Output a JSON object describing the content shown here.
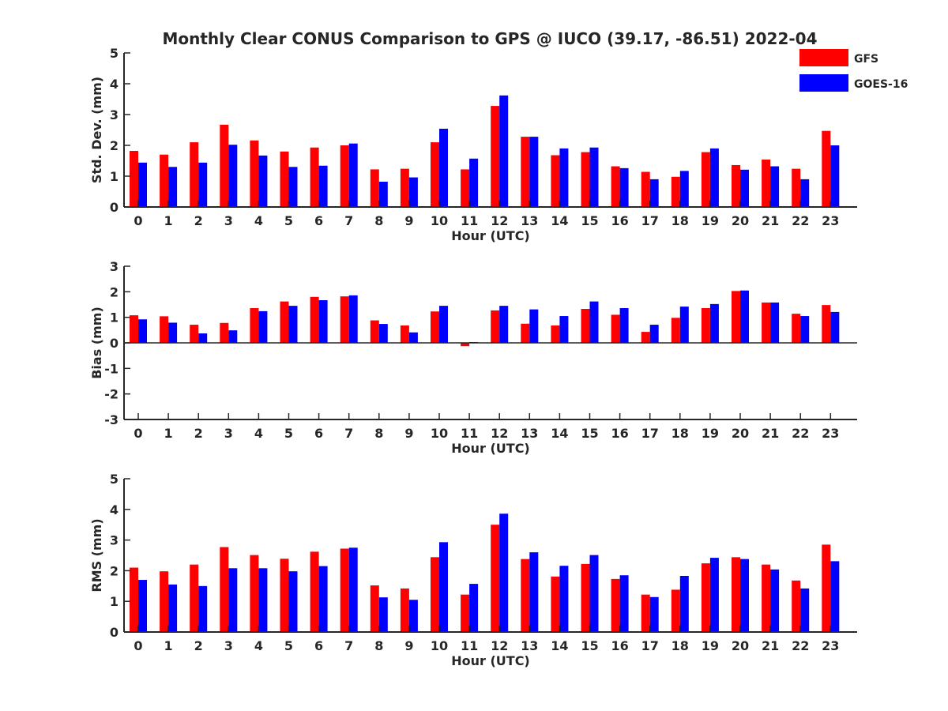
{
  "figure": {
    "title": "Monthly Clear CONUS Comparison to GPS @ IUCO (39.17, -86.51) 2022-04"
  },
  "legend": {
    "placement": "top-right",
    "entries": [
      {
        "name": "GFS",
        "color": "#ff0000"
      },
      {
        "name": "GOES-16",
        "color": "#0000ff"
      }
    ]
  },
  "chart_data": [
    {
      "type": "bar",
      "id": "stddev",
      "xlabel": "Hour (UTC)",
      "ylabel": "Std. Dev. (mm)",
      "ylim": [
        0,
        5
      ],
      "yticks": [
        0,
        1,
        2,
        3,
        4,
        5
      ],
      "categories": [
        "0",
        "1",
        "2",
        "3",
        "4",
        "5",
        "6",
        "7",
        "8",
        "9",
        "10",
        "11",
        "12",
        "13",
        "14",
        "15",
        "16",
        "17",
        "18",
        "19",
        "20",
        "21",
        "22",
        "23"
      ],
      "series": [
        {
          "name": "GFS",
          "color": "#ff0000",
          "values": [
            1.82,
            1.7,
            2.1,
            2.67,
            2.16,
            1.8,
            1.93,
            2.0,
            1.22,
            1.24,
            2.1,
            1.22,
            3.28,
            2.28,
            1.68,
            1.78,
            1.32,
            1.14,
            0.98,
            1.78,
            1.36,
            1.54,
            1.24,
            2.47
          ]
        },
        {
          "name": "GOES-16",
          "color": "#0000ff",
          "values": [
            1.44,
            1.3,
            1.44,
            2.02,
            1.67,
            1.3,
            1.34,
            2.06,
            0.82,
            0.96,
            2.54,
            1.57,
            3.62,
            2.28,
            1.9,
            1.93,
            1.26,
            0.9,
            1.17,
            1.9,
            1.21,
            1.32,
            0.9,
            2.0
          ]
        }
      ]
    },
    {
      "type": "bar",
      "id": "bias",
      "xlabel": "Hour (UTC)",
      "ylabel": "Bias (mm)",
      "ylim": [
        -3,
        3
      ],
      "yticks": [
        -3,
        -2,
        -1,
        0,
        1,
        2,
        3
      ],
      "categories": [
        "0",
        "1",
        "2",
        "3",
        "4",
        "5",
        "6",
        "7",
        "8",
        "9",
        "10",
        "11",
        "12",
        "13",
        "14",
        "15",
        "16",
        "17",
        "18",
        "19",
        "20",
        "21",
        "22",
        "23"
      ],
      "series": [
        {
          "name": "GFS",
          "color": "#ff0000",
          "values": [
            1.08,
            1.04,
            0.71,
            0.78,
            1.36,
            1.62,
            1.8,
            1.82,
            0.88,
            0.68,
            1.23,
            -0.13,
            1.27,
            0.75,
            0.68,
            1.33,
            1.1,
            0.43,
            0.98,
            1.36,
            2.03,
            1.58,
            1.14,
            1.48
          ]
        },
        {
          "name": "GOES-16",
          "color": "#0000ff",
          "values": [
            0.92,
            0.79,
            0.37,
            0.49,
            1.24,
            1.45,
            1.67,
            1.86,
            0.74,
            0.41,
            1.45,
            0.03,
            1.45,
            1.31,
            1.05,
            1.62,
            1.36,
            0.71,
            1.42,
            1.52,
            2.05,
            1.58,
            1.05,
            1.21
          ]
        }
      ]
    },
    {
      "type": "bar",
      "id": "rms",
      "xlabel": "Hour (UTC)",
      "ylabel": "RMS (mm)",
      "ylim": [
        0,
        5
      ],
      "yticks": [
        0,
        1,
        2,
        3,
        4,
        5
      ],
      "categories": [
        "0",
        "1",
        "2",
        "3",
        "4",
        "5",
        "6",
        "7",
        "8",
        "9",
        "10",
        "11",
        "12",
        "13",
        "14",
        "15",
        "16",
        "17",
        "18",
        "19",
        "20",
        "21",
        "22",
        "23"
      ],
      "series": [
        {
          "name": "GFS",
          "color": "#ff0000",
          "values": [
            2.1,
            1.98,
            2.2,
            2.77,
            2.51,
            2.39,
            2.62,
            2.72,
            1.52,
            1.42,
            2.44,
            1.22,
            3.5,
            2.38,
            1.81,
            2.22,
            1.73,
            1.22,
            1.38,
            2.24,
            2.44,
            2.2,
            1.68,
            2.85
          ]
        },
        {
          "name": "GOES-16",
          "color": "#0000ff",
          "values": [
            1.7,
            1.55,
            1.5,
            2.08,
            2.08,
            1.98,
            2.15,
            2.75,
            1.13,
            1.05,
            2.93,
            1.57,
            3.86,
            2.6,
            2.16,
            2.51,
            1.85,
            1.14,
            1.83,
            2.42,
            2.38,
            2.04,
            1.42,
            2.31
          ]
        }
      ]
    }
  ]
}
